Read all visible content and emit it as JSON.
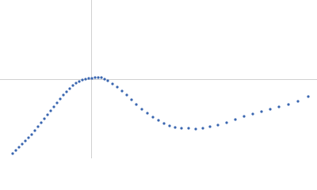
{
  "chart_data": {
    "type": "scatter",
    "color": "#3a66b0",
    "xlim": [
      0,
      400
    ],
    "ylim": [
      -100,
      100
    ],
    "crosshair": {
      "x": 115,
      "y": 0
    },
    "x": [
      16,
      20,
      24,
      28,
      32,
      36,
      40,
      44,
      48,
      52,
      56,
      60,
      64,
      68,
      72,
      76,
      80,
      84,
      88,
      92,
      96,
      100,
      104,
      108,
      112,
      116,
      120,
      124,
      128,
      132,
      136,
      142,
      148,
      154,
      160,
      166,
      172,
      179,
      186,
      193,
      200,
      207,
      214,
      221,
      229,
      238,
      247,
      256,
      265,
      275,
      286,
      297,
      308,
      319,
      330,
      341,
      352,
      364,
      376,
      389
    ],
    "values": [
      -94,
      -90,
      -86,
      -82,
      -78,
      -74,
      -70,
      -65,
      -60,
      -55,
      -50,
      -45,
      -40,
      -35,
      -30,
      -25,
      -20,
      -16,
      -12,
      -8,
      -5,
      -3,
      -1,
      0,
      1,
      1,
      2,
      2,
      2,
      0,
      -2,
      -6,
      -10,
      -15,
      -20,
      -26,
      -32,
      -38,
      -43,
      -48,
      -52,
      -56,
      -59,
      -61,
      -62,
      -62,
      -63,
      -62,
      -60,
      -58,
      -55,
      -51,
      -47,
      -44,
      -41,
      -38,
      -35,
      -32,
      -28,
      -22
    ]
  }
}
